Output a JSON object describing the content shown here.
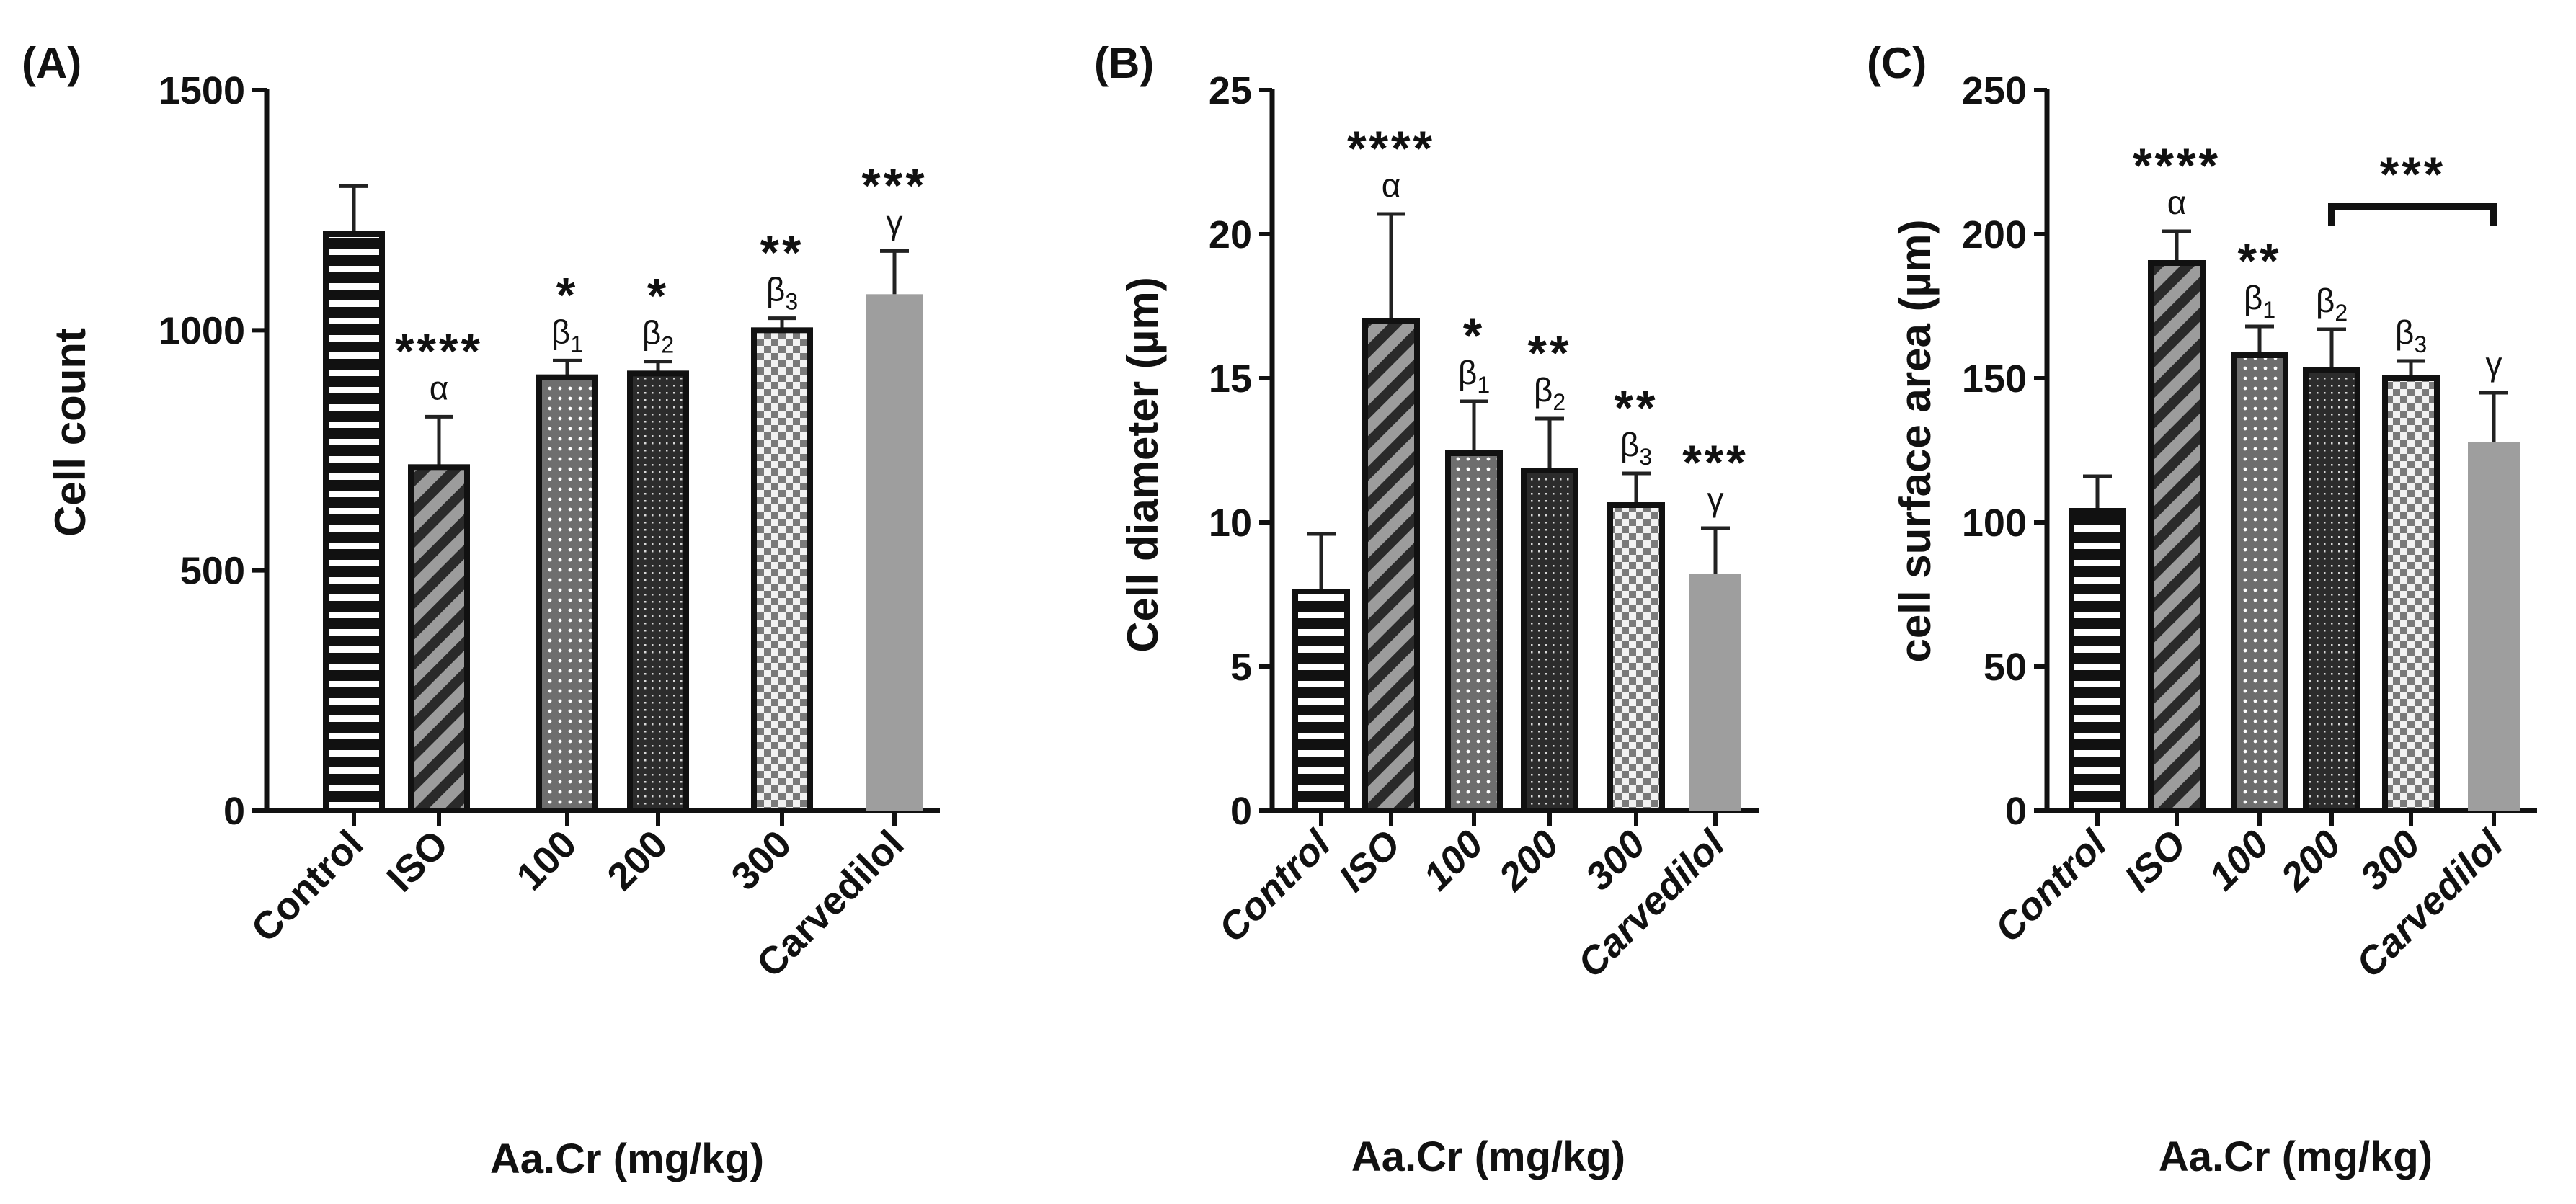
{
  "chart_data": [
    {
      "type": "bar",
      "panel": "(A)",
      "ylabel": "Cell count",
      "xlabel": "Aa.Cr (mg/kg)",
      "ylim": [
        0,
        1500
      ],
      "yticks": [
        0,
        500,
        1000,
        1500
      ],
      "italic_categories": false,
      "categories": [
        "Control",
        "ISO",
        "100",
        "200",
        "300",
        "Carvedilol"
      ],
      "values": [
        1200,
        715,
        902,
        910,
        1000,
        1075
      ],
      "errors": [
        100,
        105,
        35,
        25,
        25,
        90
      ],
      "patterns": [
        "hstripes",
        "diag",
        "dots",
        "fine",
        "checker",
        "solid"
      ],
      "stars": [
        "",
        "****",
        "*",
        "*",
        "**",
        "***"
      ],
      "symbols": [
        {
          "base": "",
          "sub": ""
        },
        {
          "base": "α",
          "sub": ""
        },
        {
          "base": "β",
          "sub": "1"
        },
        {
          "base": "β",
          "sub": "2"
        },
        {
          "base": "β",
          "sub": "3"
        },
        {
          "base": "γ",
          "sub": ""
        }
      ],
      "bracket": null
    },
    {
      "type": "bar",
      "panel": "(B)",
      "ylabel": "Cell diameter (µm)",
      "xlabel": "Aa.Cr (mg/kg)",
      "ylim": [
        0,
        25
      ],
      "yticks": [
        0,
        5,
        10,
        15,
        20,
        25
      ],
      "italic_categories": true,
      "categories": [
        "Control",
        "ISO",
        "100",
        "200",
        "300",
        "Carvedilol"
      ],
      "values": [
        7.6,
        17.0,
        12.4,
        11.8,
        10.6,
        8.2
      ],
      "errors": [
        2.0,
        3.7,
        1.8,
        1.8,
        1.1,
        1.6
      ],
      "patterns": [
        "hstripes",
        "diag",
        "dots",
        "fine",
        "checker",
        "solid"
      ],
      "stars": [
        "",
        "****",
        "*",
        "**",
        "**",
        "***"
      ],
      "symbols": [
        {
          "base": "",
          "sub": ""
        },
        {
          "base": "α",
          "sub": ""
        },
        {
          "base": "β",
          "sub": "1"
        },
        {
          "base": "β",
          "sub": "2"
        },
        {
          "base": "β",
          "sub": "3"
        },
        {
          "base": "γ",
          "sub": ""
        }
      ],
      "bracket": null
    },
    {
      "type": "bar",
      "panel": "(C)",
      "ylabel": "cell surface area (µm)",
      "xlabel": "Aa.Cr (mg/kg)",
      "ylim": [
        0,
        250
      ],
      "yticks": [
        0,
        50,
        100,
        150,
        200,
        250
      ],
      "italic_categories": true,
      "categories": [
        "Control",
        "ISO",
        "100",
        "200",
        "300",
        "Carvedilol"
      ],
      "values": [
        104,
        190,
        158,
        153,
        150,
        128
      ],
      "errors": [
        12,
        11,
        10,
        14,
        6,
        17
      ],
      "patterns": [
        "hstripes",
        "diag",
        "dots",
        "fine",
        "checker",
        "solid"
      ],
      "stars": [
        "",
        "****",
        "**",
        "",
        "",
        ""
      ],
      "symbols": [
        {
          "base": "",
          "sub": ""
        },
        {
          "base": "α",
          "sub": ""
        },
        {
          "base": "β",
          "sub": "1"
        },
        {
          "base": "β",
          "sub": "2"
        },
        {
          "base": "β",
          "sub": "3"
        },
        {
          "base": "γ",
          "sub": ""
        }
      ],
      "bracket": {
        "from": 3,
        "to": 5,
        "label": "***"
      }
    }
  ]
}
